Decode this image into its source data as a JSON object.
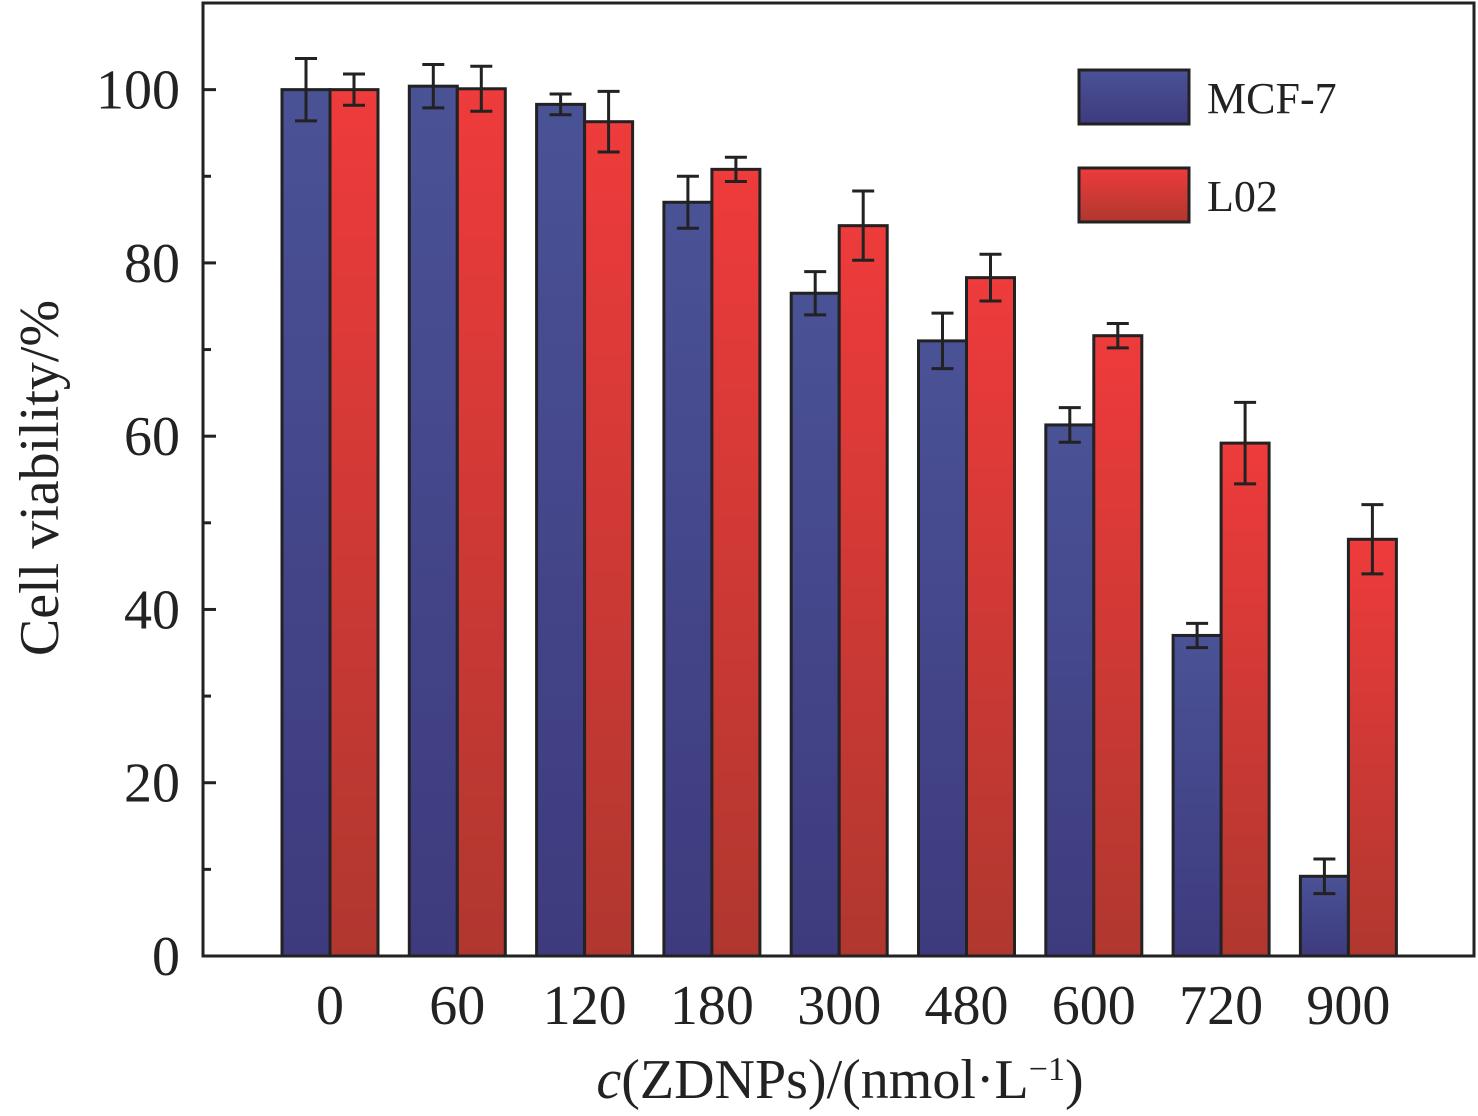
{
  "chart_data": {
    "type": "bar",
    "categories": [
      "0",
      "60",
      "120",
      "180",
      "300",
      "480",
      "600",
      "720",
      "900"
    ],
    "series": [
      {
        "name": "MCF-7",
        "values": [
          100,
          100.4,
          98.3,
          87.0,
          76.5,
          71.0,
          61.3,
          37.0,
          9.2
        ],
        "errors": [
          3.6,
          2.5,
          1.2,
          3.0,
          2.5,
          3.2,
          2.0,
          1.4,
          2.0
        ]
      },
      {
        "name": "L02",
        "values": [
          100,
          100.1,
          96.3,
          90.8,
          84.3,
          78.3,
          71.6,
          59.2,
          48.1
        ],
        "errors": [
          1.8,
          2.6,
          3.5,
          1.4,
          4.0,
          2.7,
          1.4,
          4.7,
          4.0
        ]
      }
    ],
    "colors": {
      "MCF-7": {
        "top": "#4a5296",
        "bottom": "#3e3a7e"
      },
      "L02": {
        "top": "#ee3b3b",
        "bottom": "#b0372f"
      }
    },
    "xlabel": {
      "italic": "c",
      "main": "(ZDNPs)/(nmol·L",
      "sup": "−1",
      "tail": ")"
    },
    "ylabel": "Cell viability/%",
    "ylim": [
      0,
      110
    ],
    "yticks": [
      "0",
      "20",
      "40",
      "60",
      "80",
      "100"
    ],
    "ytick_values": [
      0,
      20,
      40,
      60,
      80,
      100
    ],
    "yminor_values": [
      10,
      30,
      50,
      70,
      90
    ],
    "legend_position": "top-right",
    "grid": false
  }
}
